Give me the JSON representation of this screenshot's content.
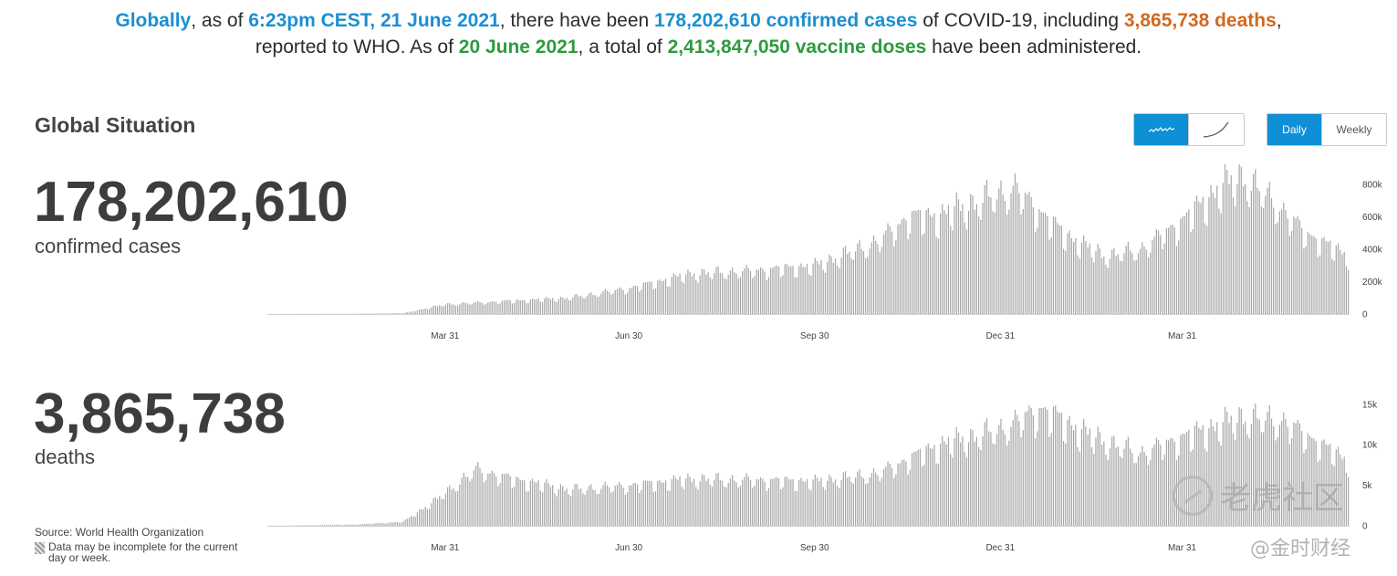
{
  "headline": {
    "part1": "Globally",
    "part2": ", as of ",
    "part3": "6:23pm CEST, 21 June 2021",
    "part4": ", there have been ",
    "part5": "178,202,610 confirmed cases",
    "part6": " of COVID-19, including ",
    "part7": "3,865,738 deaths",
    "part8": ",",
    "part9": "reported to WHO. As of ",
    "part10": "20 June 2021",
    "part11": ", a total of ",
    "part12": "2,413,847,050 vaccine doses",
    "part13": " have been administered."
  },
  "section_title": "Global Situation",
  "controls": {
    "scale": {
      "linear_icon": "line-chart-jagged-icon",
      "log_icon": "curve-chart-icon",
      "active": "linear"
    },
    "period": {
      "daily_label": "Daily",
      "weekly_label": "Weekly",
      "active": "daily"
    }
  },
  "cases": {
    "total": "178,202,610",
    "label": "confirmed cases"
  },
  "deaths": {
    "total": "3,865,738",
    "label": "deaths"
  },
  "source": "Source: World Health Organization",
  "note": "Data may be incomplete for the current day or week.",
  "watermark": {
    "main": "老虎社区",
    "sub": "@金时财经"
  },
  "colors": {
    "bar": "#a7a7a7",
    "accent_blue": "#1a8fd1",
    "accent_orange": "#d2691e",
    "accent_green": "#2e9b3f",
    "active_button": "#0e8fd6"
  },
  "chart_data": [
    {
      "type": "bar",
      "name": "daily-confirmed-cases",
      "x_start": "2020-01-03",
      "x_end": "2021-06-21",
      "x_ticks": [
        "Mar 31",
        "Jun 30",
        "Sep 30",
        "Dec 31",
        "Mar 31"
      ],
      "y_ticks": [
        "0",
        "200k",
        "400k",
        "600k",
        "800k"
      ],
      "ylim": [
        0,
        900000
      ],
      "grid": false,
      "monthly_keyframes": [
        [
          "2020-01-03",
          0
        ],
        [
          "2020-02-15",
          2000
        ],
        [
          "2020-03-10",
          5000
        ],
        [
          "2020-03-31",
          60000
        ],
        [
          "2020-04-30",
          80000
        ],
        [
          "2020-05-31",
          100000
        ],
        [
          "2020-06-30",
          160000
        ],
        [
          "2020-07-31",
          250000
        ],
        [
          "2020-08-31",
          270000
        ],
        [
          "2020-09-30",
          300000
        ],
        [
          "2020-10-31",
          450000
        ],
        [
          "2020-11-15",
          600000
        ],
        [
          "2020-11-30",
          610000
        ],
        [
          "2020-12-20",
          700000
        ],
        [
          "2021-01-07",
          780000
        ],
        [
          "2021-01-31",
          500000
        ],
        [
          "2021-02-20",
          360000
        ],
        [
          "2021-03-10",
          400000
        ],
        [
          "2021-03-31",
          580000
        ],
        [
          "2021-04-20",
          800000
        ],
        [
          "2021-04-30",
          850000
        ],
        [
          "2021-05-15",
          700000
        ],
        [
          "2021-05-31",
          500000
        ],
        [
          "2021-06-21",
          360000
        ]
      ]
    },
    {
      "type": "bar",
      "name": "daily-deaths",
      "x_start": "2020-01-03",
      "x_end": "2021-06-21",
      "x_ticks": [
        "Mar 31",
        "Jun 30",
        "Sep 30",
        "Dec 31",
        "Mar 31"
      ],
      "y_ticks": [
        "0",
        "5k",
        "10k",
        "15k"
      ],
      "ylim": [
        0,
        17000
      ],
      "grid": false,
      "monthly_keyframes": [
        [
          "2020-01-03",
          0
        ],
        [
          "2020-02-15",
          150
        ],
        [
          "2020-03-10",
          500
        ],
        [
          "2020-03-25",
          3000
        ],
        [
          "2020-04-15",
          7000
        ],
        [
          "2020-04-30",
          6000
        ],
        [
          "2020-05-31",
          4500
        ],
        [
          "2020-06-30",
          5000
        ],
        [
          "2020-07-31",
          5800
        ],
        [
          "2020-08-31",
          5700
        ],
        [
          "2020-09-30",
          5500
        ],
        [
          "2020-10-31",
          6500
        ],
        [
          "2020-11-30",
          10000
        ],
        [
          "2020-12-31",
          12000
        ],
        [
          "2021-01-20",
          14500
        ],
        [
          "2021-02-15",
          11000
        ],
        [
          "2021-03-10",
          9000
        ],
        [
          "2021-03-31",
          11000
        ],
        [
          "2021-04-30",
          13500
        ],
        [
          "2021-05-20",
          13000
        ],
        [
          "2021-06-21",
          8000
        ]
      ]
    }
  ]
}
